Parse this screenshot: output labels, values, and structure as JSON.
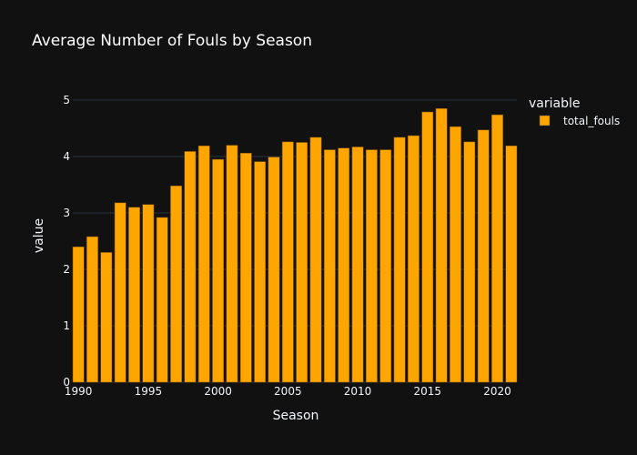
{
  "chart_data": {
    "type": "bar",
    "title": "Average Number of Fouls by Season",
    "xlabel": "Season",
    "ylabel": "value",
    "x": [
      1990,
      1991,
      1992,
      1993,
      1994,
      1995,
      1996,
      1997,
      1998,
      1999,
      2000,
      2001,
      2002,
      2003,
      2004,
      2005,
      2006,
      2007,
      2008,
      2009,
      2010,
      2011,
      2012,
      2013,
      2014,
      2015,
      2016,
      2017,
      2018,
      2019,
      2020,
      2021
    ],
    "x_ticks": [
      1990,
      1995,
      2000,
      2005,
      2010,
      2015,
      2020
    ],
    "xlim": [
      1989.6,
      2021.4
    ],
    "ylim": [
      0,
      5.5
    ],
    "y_ticks": [
      0,
      1,
      2,
      3,
      4,
      5
    ],
    "grid": true,
    "legend": {
      "title": "variable",
      "placement": "top-right",
      "entries": [
        "total_fouls"
      ]
    },
    "series": [
      {
        "name": "total_fouls",
        "color": "#FFA500",
        "values": [
          2.4,
          2.58,
          2.3,
          3.18,
          3.1,
          3.15,
          2.92,
          3.48,
          4.09,
          4.19,
          3.95,
          4.2,
          4.06,
          3.91,
          3.99,
          4.26,
          4.25,
          4.34,
          4.12,
          4.15,
          4.17,
          4.12,
          4.12,
          4.34,
          4.37,
          4.79,
          4.85,
          4.53,
          4.26,
          4.47,
          4.74,
          4.19
        ]
      }
    ]
  }
}
